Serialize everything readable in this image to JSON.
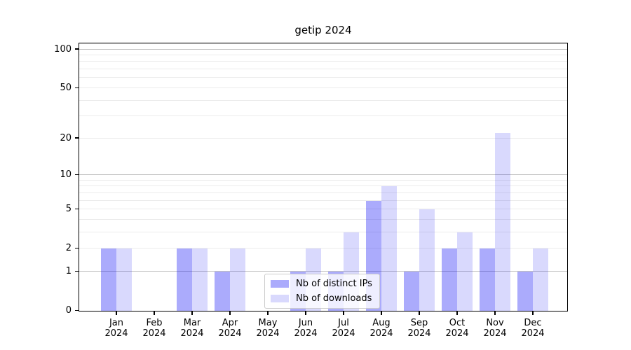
{
  "title": "getip 2024",
  "chart_data": {
    "type": "bar",
    "title": "getip 2024",
    "categories": [
      "Jan",
      "Feb",
      "Mar",
      "Apr",
      "May",
      "Jun",
      "Jul",
      "Aug",
      "Sep",
      "Oct",
      "Nov",
      "Dec"
    ],
    "category_year": "2024",
    "series": [
      {
        "name": "Nb of distinct IPs",
        "color": "rgba(10,10,245,0.34)",
        "color_hex_on_white": "#a9a9f7",
        "values": [
          2,
          0,
          2,
          1,
          0,
          1,
          1,
          6,
          1,
          2,
          2,
          1
        ]
      },
      {
        "name": "Nb of downloads",
        "color": "rgba(10,10,245,0.155)",
        "color_hex_on_white": "#d8d8fa",
        "values": [
          2,
          0,
          2,
          2,
          0,
          2,
          3,
          8,
          5,
          3,
          22,
          2
        ]
      }
    ],
    "xlabel": "",
    "ylabel": "",
    "yscale": "log1p",
    "ylim": [
      0,
      112
    ],
    "y_ticks": [
      0,
      1,
      2,
      5,
      10,
      20,
      50,
      100
    ],
    "y_major_gridlines": [
      1,
      10,
      100
    ],
    "y_minor_gridlines": [
      2,
      3,
      4,
      5,
      6,
      7,
      8,
      9,
      20,
      30,
      40,
      50,
      60,
      70,
      80,
      90,
      110
    ],
    "grid": "on",
    "legend_position": "lower center",
    "axis_color": "#000000",
    "major_grid_color": "#c0c0c0",
    "minor_grid_color": "#ebebeb"
  }
}
